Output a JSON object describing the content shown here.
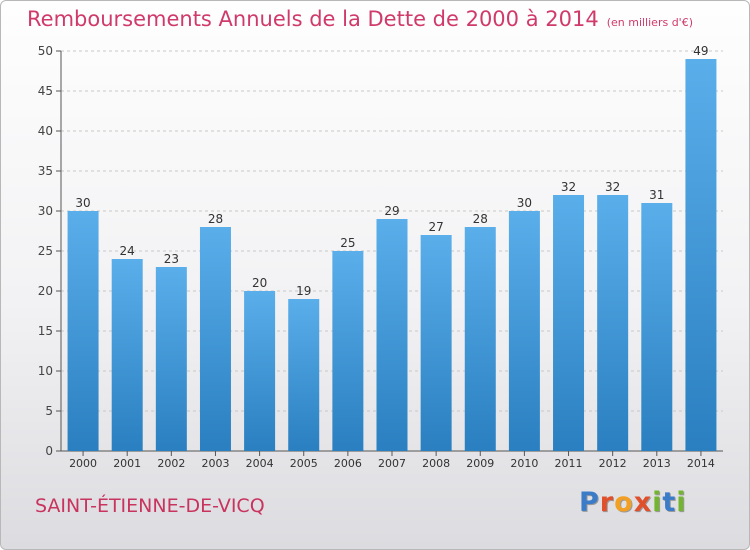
{
  "title": "Remboursements Annuels de la Dette de 2000 à 2014",
  "unit": "(en milliers d'€)",
  "commune": "SAINT-ÉTIENNE-DE-VICQ",
  "brand": {
    "letters": [
      "P",
      "r",
      "o",
      "x",
      "i",
      "t",
      "i"
    ],
    "colors": [
      "#3a7cc7",
      "#e0502a",
      "#f2a023",
      "#e0502a",
      "#74b52f",
      "#3a7cc7",
      "#74b52f"
    ]
  },
  "colors": {
    "bar_top": "#5aaeea",
    "bar_bottom": "#2a7fc0",
    "title": "#d03a6a",
    "grid": "#c8c8c8"
  },
  "chart_data": {
    "type": "bar",
    "categories": [
      "2000",
      "2001",
      "2002",
      "2003",
      "2004",
      "2005",
      "2006",
      "2007",
      "2008",
      "2009",
      "2010",
      "2011",
      "2012",
      "2013",
      "2014"
    ],
    "values": [
      30,
      24,
      23,
      28,
      20,
      19,
      25,
      29,
      27,
      28,
      30,
      32,
      32,
      31,
      49
    ],
    "title": "Remboursements Annuels de la Dette de 2000 à 2014",
    "xlabel": "",
    "ylabel": "",
    "ylim": [
      0,
      50
    ],
    "yticks": [
      0,
      5,
      10,
      15,
      20,
      25,
      30,
      35,
      40,
      45,
      50
    ],
    "grid": true,
    "data_labels": true
  }
}
